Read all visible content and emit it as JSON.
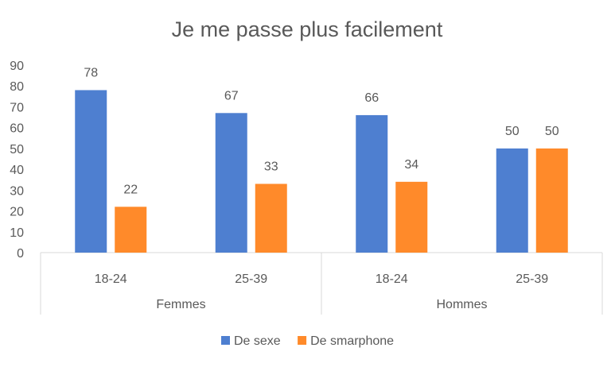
{
  "chart_data": {
    "type": "bar",
    "title": "Je me passe plus facilement",
    "groups": [
      {
        "label": "Femmes",
        "categories": [
          "18-24",
          "25-39"
        ]
      },
      {
        "label": "Hommes",
        "categories": [
          "18-24",
          "25-39"
        ]
      }
    ],
    "categories": [
      "18-24",
      "25-39",
      "18-24",
      "25-39"
    ],
    "series": [
      {
        "name": "De sexe",
        "color": "#4E7FD0",
        "values": [
          78,
          67,
          66,
          50
        ]
      },
      {
        "name": "De smarphone",
        "color": "#FF8A2A",
        "values": [
          22,
          33,
          34,
          50
        ]
      }
    ],
    "ylim": [
      0,
      90
    ],
    "yticks": [
      0,
      10,
      20,
      30,
      40,
      50,
      60,
      70,
      80,
      90
    ],
    "grid": false,
    "legend": "bottom",
    "data_labels": true
  }
}
